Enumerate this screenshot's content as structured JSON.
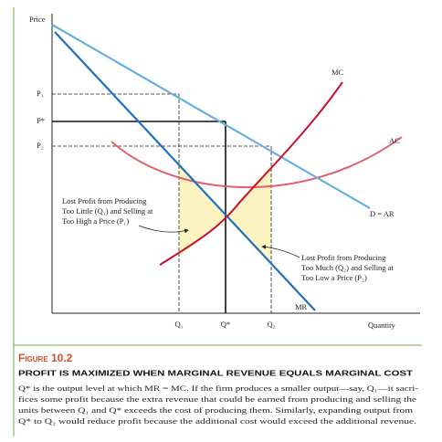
{
  "axes": {
    "y_label": "Price",
    "x_label": "Quantity",
    "y_ticks": [
      "P₁",
      "P*",
      "P₂"
    ],
    "x_ticks": [
      "Q₁",
      "Q*",
      "Q₂"
    ]
  },
  "curves": {
    "mc": "MC",
    "ac": "AC",
    "demand": "D = AR",
    "mr": "MR"
  },
  "annotations": {
    "left": [
      "Lost Profit from Producing",
      "Too Little (Q₁) and Selling at",
      "Too High a Price (P₁)"
    ],
    "right": [
      "Lost Profit from Producing",
      "Too Much (Q₂) and Selling at",
      "Too Low a Price (P₂)"
    ]
  },
  "caption": {
    "label": "Figure 10.2",
    "title": "PROFIT IS MAXIMIZED WHEN MARGINAL REVENUE EQUALS MARGINAL COST",
    "body": [
      "Q* is the output level at which MR = MC. If the firm produces a smaller output—say, Q₁—it sacri-",
      "fices some profit because the extra revenue that could be earned from producing and selling the",
      "units between Q₁ and Q* exceeds the cost of producing them. Similarly, expanding output from",
      "Q* to Q₂ would reduce profit because the additional cost would exceed the additional revenue."
    ]
  }
}
